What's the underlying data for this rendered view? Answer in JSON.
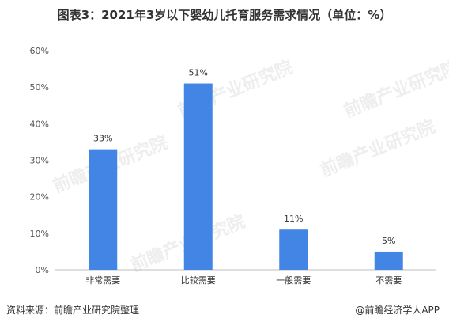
{
  "title": "图表3：2021年3岁以下婴幼儿托育服务需求情况（单位：%）",
  "footer": {
    "source": "资料来源：前瞻产业研究院整理",
    "brand": "@前瞻经济学人APP"
  },
  "watermark": "前瞻产业研究院",
  "colors": {
    "bar": "#4285E4",
    "grid": "#d9d9d9",
    "axis": "#bfbfbf"
  },
  "chart_data": {
    "type": "bar",
    "categories": [
      "非常需要",
      "比较需要",
      "一般需要",
      "不需要"
    ],
    "values": [
      33,
      51,
      11,
      5
    ],
    "data_labels": [
      "33%",
      "51%",
      "11%",
      "5%"
    ],
    "yticks": [
      "0%",
      "10%",
      "20%",
      "30%",
      "40%",
      "50%",
      "60%"
    ],
    "ylim": [
      0,
      60
    ],
    "grid": false,
    "legend": "none"
  }
}
